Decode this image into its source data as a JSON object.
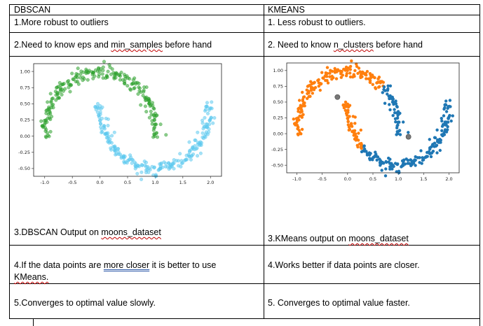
{
  "header": {
    "left": "DBSCAN",
    "right": "KMEANS"
  },
  "row1": {
    "left": "1.More robust to outliers",
    "right": "1. Less robust to outliers."
  },
  "row2": {
    "left_pre": "2.Need to know eps and ",
    "left_mark": "min_samples",
    "left_post": " before hand",
    "right_pre": "2. Need to know ",
    "right_mark": "n_clusters",
    "right_post": " before hand"
  },
  "row3": {
    "left_pre": "3.DBSCAN Output on ",
    "left_mark": "moons_dataset",
    "right_pre": "3.KMeans output on ",
    "right_mark": "moons_dataset"
  },
  "row4": {
    "left_line1_pre": "4.If the data points are ",
    "left_mark": "more closer",
    "left_line1_post": " it is better to use",
    "left_line2": "KMeans.",
    "right": "4.Works better if data points are closer."
  },
  "row5": {
    "left": "5.Converges to optimal value slowly.",
    "right": "5. Converges to optimal value faster."
  },
  "chart_data": [
    {
      "type": "scatter",
      "title": "",
      "xlabel": "",
      "ylabel": "",
      "xlim": [
        -1.2,
        2.2
      ],
      "ylim": [
        -0.62,
        1.12
      ],
      "xticks": [
        "-1.0",
        "-0.5",
        "0.0",
        "0.5",
        "1.0",
        "1.5",
        "2.0"
      ],
      "yticks": [
        "1.00",
        "0.75",
        "0.50",
        "0.25",
        "0.00",
        "-0.25",
        "-0.50"
      ],
      "grid": false,
      "series": [
        {
          "color": "#2ca02c",
          "shape": "upper moon",
          "x_range": [
            -1.0,
            1.0
          ],
          "center": [
            0,
            0
          ],
          "radius": 1,
          "noise": 0.05
        },
        {
          "color": "#5bc8ef",
          "shape": "lower moon",
          "x_range": [
            0.0,
            2.0
          ],
          "center": [
            1,
            0.5
          ],
          "radius": 1,
          "noise": 0.05
        }
      ]
    },
    {
      "type": "scatter",
      "title": "",
      "xlabel": "",
      "ylabel": "",
      "xlim": [
        -1.2,
        2.2
      ],
      "ylim": [
        -0.62,
        1.12
      ],
      "xticks": [
        "-1.0",
        "-0.5",
        "0.0",
        "0.5",
        "1.0",
        "1.5",
        "2.0"
      ],
      "yticks": [
        "1.00",
        "0.75",
        "0.50",
        "0.25",
        "0.00",
        "-0.25",
        "-0.50"
      ],
      "grid": false,
      "series": [
        {
          "color": "#ff7f0e",
          "shape": "cluster 1"
        },
        {
          "color": "#1f77b4",
          "shape": "cluster 2"
        }
      ],
      "centroids": [
        {
          "x": -0.2,
          "y": 0.58,
          "color": "#777777"
        },
        {
          "x": 1.2,
          "y": -0.05,
          "color": "#777777"
        }
      ]
    }
  ]
}
